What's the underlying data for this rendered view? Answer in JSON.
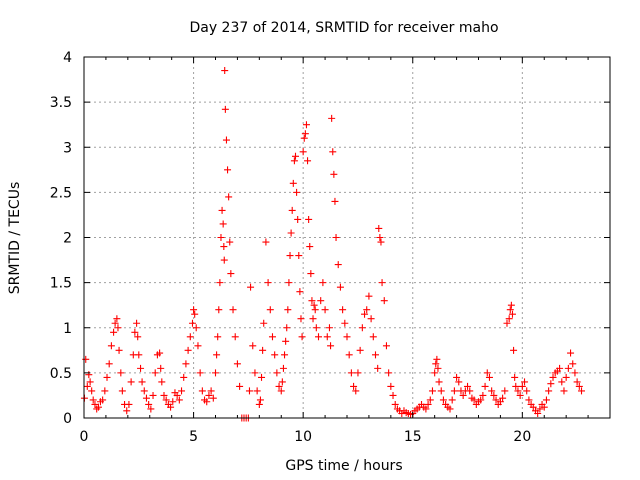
{
  "chart_data": {
    "type": "scatter",
    "title": "Day 237 of 2014, SRMTID for receiver maho",
    "xlabel": "GPS time / hours",
    "ylabel": "SRMTID / TECUs",
    "xlim": [
      0,
      24
    ],
    "ylim": [
      0,
      4
    ],
    "xticks": [
      0,
      5,
      10,
      15,
      20
    ],
    "yticks": [
      0,
      0.5,
      1,
      1.5,
      2,
      2.5,
      3,
      3.5,
      4
    ],
    "xtick_labels": [
      "0",
      "5",
      "10",
      "15",
      "20"
    ],
    "ytick_labels": [
      "0",
      "0.5",
      "1",
      "1.5",
      "2",
      "2.5",
      "3",
      "3.5",
      "4"
    ],
    "grid": true,
    "marker": "+",
    "color": "#ff0000",
    "series": [
      {
        "name": "SRMTID",
        "x": [
          0.02,
          0.08,
          0.15,
          0.22,
          0.28,
          0.35,
          0.42,
          0.5,
          0.58,
          0.66,
          0.75,
          0.85,
          0.95,
          1.05,
          1.15,
          1.25,
          1.35,
          1.42,
          1.5,
          1.55,
          1.6,
          1.68,
          1.75,
          1.85,
          1.95,
          2.05,
          2.15,
          2.25,
          2.32,
          2.4,
          2.45,
          2.5,
          2.58,
          2.65,
          2.75,
          2.85,
          2.95,
          3.05,
          3.15,
          3.25,
          3.35,
          3.45,
          3.5,
          3.55,
          3.65,
          3.75,
          3.85,
          3.95,
          4.05,
          4.15,
          4.25,
          4.35,
          4.45,
          4.55,
          4.65,
          4.75,
          4.85,
          4.95,
          5.0,
          5.05,
          5.12,
          5.2,
          5.3,
          5.4,
          5.5,
          5.6,
          5.7,
          5.8,
          5.9,
          6.0,
          6.05,
          6.1,
          6.15,
          6.2,
          6.25,
          6.3,
          6.35,
          6.38,
          6.4,
          6.42,
          6.45,
          6.5,
          6.55,
          6.6,
          6.65,
          6.7,
          6.8,
          6.9,
          7.0,
          7.1,
          7.2,
          7.3,
          7.4,
          7.5,
          7.55,
          7.6,
          7.7,
          7.8,
          7.9,
          8.0,
          8.05,
          8.1,
          8.15,
          8.2,
          8.3,
          8.4,
          8.5,
          8.6,
          8.7,
          8.8,
          8.9,
          9.0,
          9.05,
          9.1,
          9.15,
          9.2,
          9.25,
          9.3,
          9.35,
          9.4,
          9.45,
          9.5,
          9.55,
          9.6,
          9.65,
          9.7,
          9.75,
          9.8,
          9.85,
          9.9,
          9.95,
          10.0,
          10.05,
          10.1,
          10.15,
          10.2,
          10.25,
          10.3,
          10.35,
          10.4,
          10.45,
          10.5,
          10.55,
          10.6,
          10.7,
          10.8,
          10.9,
          11.0,
          11.1,
          11.2,
          11.25,
          11.3,
          11.35,
          11.4,
          11.45,
          11.5,
          11.6,
          11.7,
          11.8,
          11.9,
          12.0,
          12.1,
          12.2,
          12.3,
          12.4,
          12.5,
          12.6,
          12.7,
          12.8,
          12.9,
          13.0,
          13.1,
          13.2,
          13.3,
          13.4,
          13.45,
          13.5,
          13.55,
          13.6,
          13.7,
          13.8,
          13.9,
          14.0,
          14.1,
          14.2,
          14.3,
          14.4,
          14.5,
          14.6,
          14.7,
          14.8,
          14.9,
          15.0,
          15.1,
          15.2,
          15.3,
          15.4,
          15.5,
          15.6,
          15.7,
          15.8,
          15.9,
          16.0,
          16.05,
          16.1,
          16.15,
          16.2,
          16.3,
          16.4,
          16.5,
          16.6,
          16.7,
          16.8,
          16.9,
          17.0,
          17.1,
          17.2,
          17.3,
          17.4,
          17.5,
          17.6,
          17.7,
          17.8,
          17.9,
          18.0,
          18.1,
          18.2,
          18.3,
          18.4,
          18.5,
          18.6,
          18.7,
          18.8,
          18.9,
          19.0,
          19.1,
          19.2,
          19.3,
          19.4,
          19.45,
          19.5,
          19.55,
          19.6,
          19.65,
          19.7,
          19.8,
          19.9,
          20.0,
          20.1,
          20.2,
          20.3,
          20.4,
          20.5,
          20.6,
          20.7,
          20.8,
          20.9,
          21.0,
          21.1,
          21.2,
          21.3,
          21.4,
          21.5,
          21.6,
          21.7,
          21.8,
          21.9,
          22.0,
          22.1,
          22.2,
          22.3,
          22.4,
          22.5,
          22.6,
          22.7
        ],
        "y": [
          0.22,
          0.65,
          0.35,
          0.48,
          0.4,
          0.3,
          0.2,
          0.15,
          0.1,
          0.12,
          0.18,
          0.2,
          0.3,
          0.45,
          0.6,
          0.8,
          0.95,
          1.05,
          1.1,
          1.0,
          0.75,
          0.5,
          0.3,
          0.15,
          0.08,
          0.15,
          0.4,
          0.7,
          0.95,
          1.05,
          0.9,
          0.7,
          0.55,
          0.4,
          0.3,
          0.22,
          0.15,
          0.1,
          0.25,
          0.5,
          0.7,
          0.72,
          0.55,
          0.4,
          0.25,
          0.2,
          0.15,
          0.12,
          0.18,
          0.28,
          0.25,
          0.2,
          0.3,
          0.45,
          0.6,
          0.75,
          0.9,
          1.05,
          1.2,
          1.15,
          1.0,
          0.8,
          0.5,
          0.3,
          0.2,
          0.18,
          0.25,
          0.3,
          0.22,
          0.5,
          0.7,
          0.9,
          1.2,
          1.5,
          2.0,
          2.3,
          2.15,
          1.9,
          1.75,
          3.85,
          3.42,
          3.08,
          2.75,
          2.45,
          1.95,
          1.6,
          1.2,
          0.9,
          0.6,
          0.35,
          0.0,
          0.0,
          0.0,
          0.0,
          0.3,
          1.45,
          0.8,
          0.5,
          0.3,
          0.15,
          0.2,
          0.45,
          0.75,
          1.05,
          1.95,
          1.5,
          1.2,
          0.9,
          0.7,
          0.5,
          0.35,
          0.3,
          0.4,
          0.55,
          0.7,
          0.85,
          1.0,
          1.2,
          1.5,
          1.8,
          2.05,
          2.3,
          2.6,
          2.85,
          2.9,
          2.5,
          2.2,
          1.8,
          1.4,
          1.1,
          0.9,
          2.95,
          3.1,
          3.15,
          3.25,
          2.85,
          2.2,
          1.9,
          1.6,
          1.3,
          1.1,
          1.25,
          1.2,
          1.0,
          0.9,
          1.3,
          1.5,
          1.2,
          0.9,
          1.0,
          0.8,
          3.32,
          2.95,
          2.7,
          2.4,
          2.0,
          1.7,
          1.45,
          1.2,
          1.05,
          0.9,
          0.7,
          0.5,
          0.35,
          0.3,
          0.5,
          0.75,
          1.0,
          1.15,
          1.2,
          1.35,
          1.1,
          0.9,
          0.7,
          0.55,
          2.1,
          2.0,
          1.95,
          1.5,
          1.3,
          0.8,
          0.5,
          0.35,
          0.25,
          0.15,
          0.1,
          0.08,
          0.05,
          0.08,
          0.06,
          0.05,
          0.04,
          0.05,
          0.08,
          0.1,
          0.12,
          0.15,
          0.12,
          0.1,
          0.15,
          0.2,
          0.3,
          0.5,
          0.6,
          0.65,
          0.55,
          0.4,
          0.3,
          0.2,
          0.15,
          0.12,
          0.1,
          0.2,
          0.3,
          0.45,
          0.4,
          0.3,
          0.25,
          0.3,
          0.35,
          0.3,
          0.22,
          0.2,
          0.15,
          0.18,
          0.2,
          0.25,
          0.35,
          0.5,
          0.45,
          0.3,
          0.25,
          0.2,
          0.15,
          0.18,
          0.22,
          0.3,
          1.05,
          1.1,
          1.2,
          1.25,
          1.15,
          0.75,
          0.45,
          0.35,
          0.3,
          0.25,
          0.35,
          0.4,
          0.3,
          0.2,
          0.15,
          0.12,
          0.08,
          0.05,
          0.1,
          0.15,
          0.12,
          0.2,
          0.3,
          0.38,
          0.45,
          0.5,
          0.52,
          0.55,
          0.4,
          0.3,
          0.45,
          0.55,
          0.72,
          0.6,
          0.5,
          0.4,
          0.35,
          0.3
        ]
      }
    ]
  }
}
